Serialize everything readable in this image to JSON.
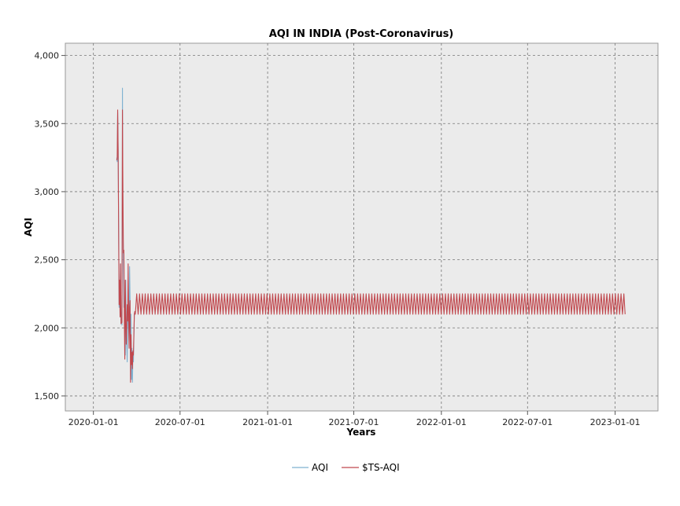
{
  "chart_data": {
    "type": "line",
    "title": "AQI IN INDIA (Post-Coronavirus)",
    "xlabel": "Years",
    "ylabel": "AQI",
    "x_range": [
      "2019-11-03",
      "2023-04-01"
    ],
    "ylim": [
      1.39,
      4.09
    ],
    "grid": true,
    "legend_placement": "bottom-center",
    "x_ticks": [
      {
        "date": "2020-01-01",
        "label": "2020-01-01"
      },
      {
        "date": "2020-07-01",
        "label": "2020-07-01"
      },
      {
        "date": "2021-01-01",
        "label": "2021-01-01"
      },
      {
        "date": "2021-07-01",
        "label": "2021-07-01"
      },
      {
        "date": "2022-01-01",
        "label": "2022-01-01"
      },
      {
        "date": "2022-07-01",
        "label": "2022-07-01"
      },
      {
        "date": "2023-01-01",
        "label": "2023-01-01"
      }
    ],
    "y_ticks": [
      {
        "value": 1.5,
        "label": "1,500"
      },
      {
        "value": 2.0,
        "label": "2,000"
      },
      {
        "value": 2.5,
        "label": "2,500"
      },
      {
        "value": 3.0,
        "label": "3,000"
      },
      {
        "value": 3.5,
        "label": "3,500"
      },
      {
        "value": 4.0,
        "label": "4,000"
      }
    ],
    "series": [
      {
        "name": "AQI",
        "color": "#7fb2d1",
        "points": [
          [
            "2020-02-19",
            3.25
          ],
          [
            "2020-02-20",
            3.22
          ],
          [
            "2020-02-21",
            3.58
          ],
          [
            "2020-02-22",
            3.3
          ],
          [
            "2020-02-24",
            2.15
          ],
          [
            "2020-02-25",
            2.3
          ],
          [
            "2020-02-26",
            2.18
          ],
          [
            "2020-02-27",
            2.47
          ],
          [
            "2020-02-28",
            2.12
          ],
          [
            "2020-03-01",
            2.02
          ],
          [
            "2020-03-02",
            3.76
          ],
          [
            "2020-03-03",
            2.75
          ],
          [
            "2020-03-04",
            2.52
          ],
          [
            "2020-03-05",
            2.15
          ],
          [
            "2020-03-07",
            2.2
          ],
          [
            "2020-03-08",
            1.8
          ],
          [
            "2020-03-09",
            2.35
          ],
          [
            "2020-03-10",
            2.0
          ],
          [
            "2020-03-12",
            1.75
          ],
          [
            "2020-03-13",
            2.05
          ],
          [
            "2020-03-14",
            2.2
          ],
          [
            "2020-03-15",
            2.0
          ],
          [
            "2020-03-16",
            1.9
          ],
          [
            "2020-03-17",
            2.45
          ],
          [
            "2020-03-18",
            2.2
          ],
          [
            "2020-03-19",
            1.8
          ],
          [
            "2020-03-20",
            2.1
          ],
          [
            "2020-03-21",
            1.62
          ],
          [
            "2020-03-22",
            1.85
          ],
          [
            "2020-03-23",
            1.6
          ],
          [
            "2020-03-24",
            1.82
          ],
          [
            "2020-03-25",
            1.75
          ],
          [
            "2020-03-27",
            2.1
          ],
          [
            "2020-03-28",
            2.12
          ]
        ]
      },
      {
        "name": "$TS-AQI",
        "color": "#c0474d",
        "points": [
          [
            "2020-02-19",
            3.23
          ],
          [
            "2020-02-20",
            3.25
          ],
          [
            "2020-02-21",
            3.6
          ],
          [
            "2020-02-22",
            3.28
          ],
          [
            "2020-02-24",
            2.17
          ],
          [
            "2020-02-25",
            2.35
          ],
          [
            "2020-02-26",
            2.08
          ],
          [
            "2020-02-27",
            2.47
          ],
          [
            "2020-02-28",
            2.03
          ],
          [
            "2020-03-01",
            2.04
          ],
          [
            "2020-03-02",
            3.6
          ],
          [
            "2020-03-03",
            2.98
          ],
          [
            "2020-03-04",
            2.55
          ],
          [
            "2020-03-05",
            2.57
          ],
          [
            "2020-03-06",
            2.05
          ],
          [
            "2020-03-07",
            1.77
          ],
          [
            "2020-03-08",
            2.35
          ],
          [
            "2020-03-09",
            2.05
          ],
          [
            "2020-03-10",
            1.88
          ],
          [
            "2020-03-12",
            2.17
          ],
          [
            "2020-03-13",
            2.05
          ],
          [
            "2020-03-14",
            2.47
          ],
          [
            "2020-03-15",
            2.1
          ],
          [
            "2020-03-16",
            1.85
          ],
          [
            "2020-03-17",
            2.15
          ],
          [
            "2020-03-18",
            2.2
          ],
          [
            "2020-03-19",
            1.6
          ],
          [
            "2020-03-20",
            1.95
          ],
          [
            "2020-03-21",
            1.73
          ],
          [
            "2020-03-22",
            1.82
          ],
          [
            "2020-03-23",
            1.7
          ],
          [
            "2020-03-24",
            1.83
          ],
          [
            "2020-03-25",
            1.8
          ],
          [
            "2020-03-27",
            2.1
          ],
          [
            "2020-03-28",
            2.12
          ]
        ],
        "forecast": {
          "start": "2020-03-29",
          "end": "2023-01-22",
          "period_days": 5.95,
          "high": 2.25,
          "low": 2.1
        }
      }
    ]
  }
}
